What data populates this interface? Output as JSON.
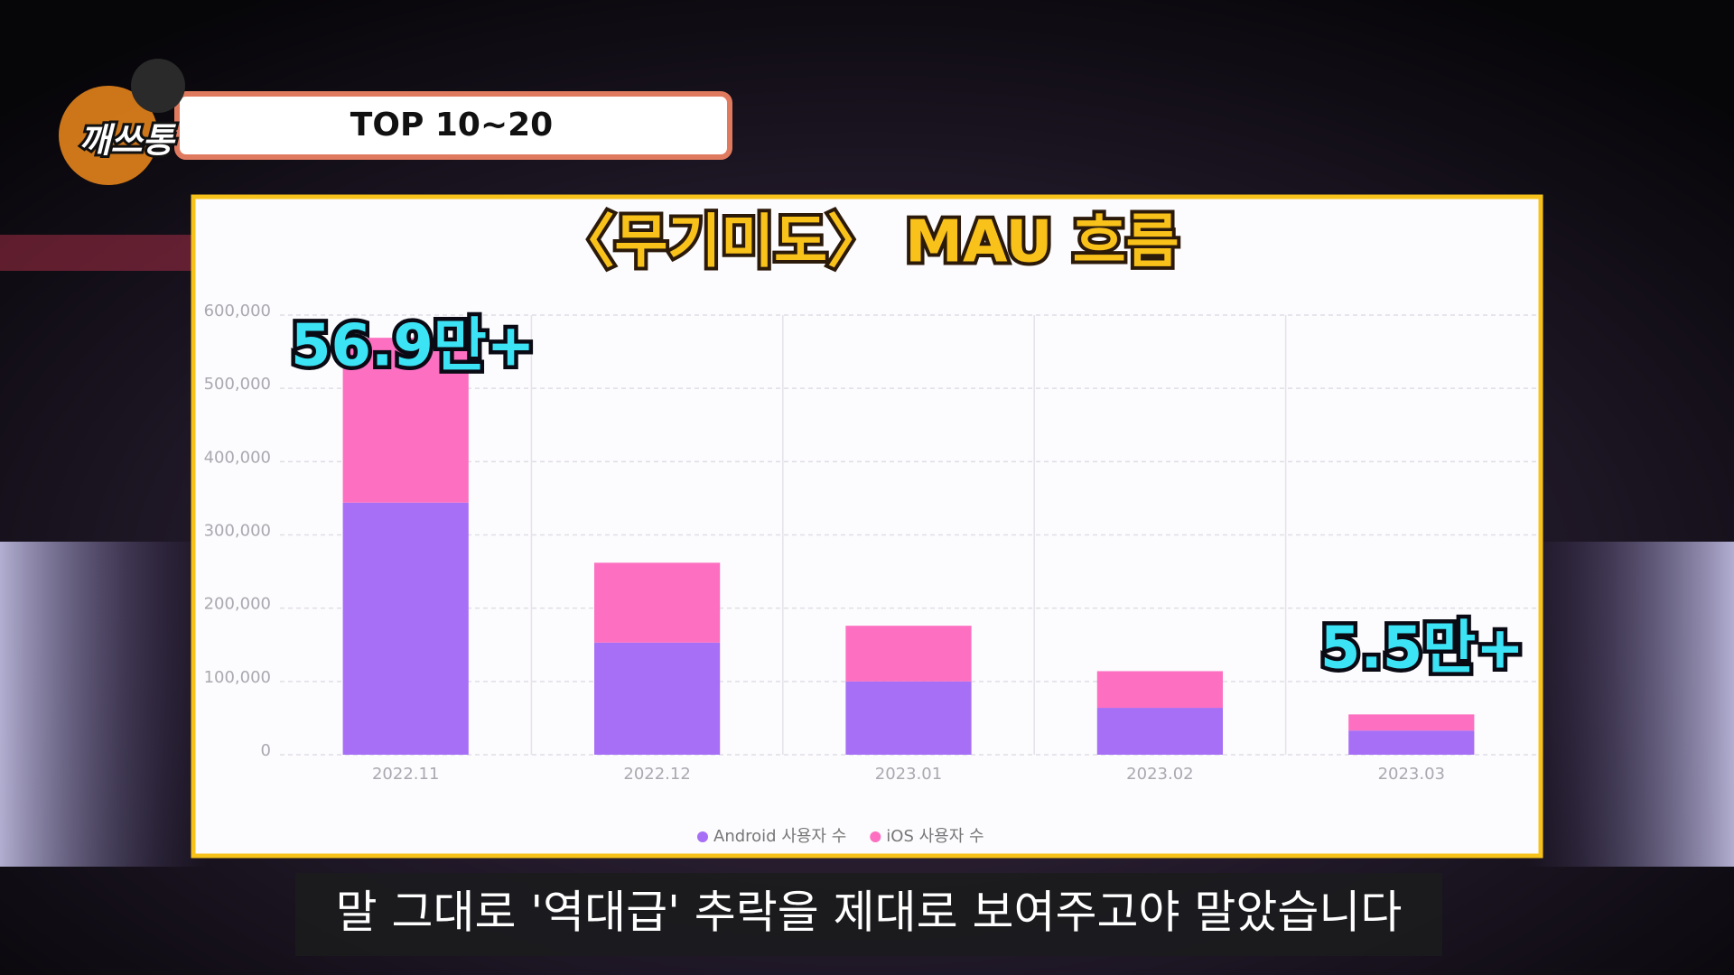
{
  "header": {
    "badge": "TOP 10~20",
    "logo": "깨쓰통"
  },
  "caption": "말 그대로 '역대급' 추락을 제대로 보여주고야 말았습니다",
  "chart_data": {
    "type": "bar",
    "stacked": true,
    "title": "〈무기미도〉 MAU 흐름",
    "categories": [
      "2022.11",
      "2022.12",
      "2023.01",
      "2023.02",
      "2023.03"
    ],
    "series": [
      {
        "name": "Android 사용자 수",
        "color": "#a66ff5",
        "values": [
          344000,
          153000,
          100000,
          64000,
          33000
        ]
      },
      {
        "name": "iOS 사용자 수",
        "color": "#fc6fc1",
        "values": [
          225000,
          109000,
          76000,
          50000,
          22000
        ]
      }
    ],
    "ylim": [
      0,
      600000
    ],
    "yticks": [
      0,
      {
        "value": 100000,
        "label": "100,000"
      },
      {
        "value": 200000,
        "label": "200,000"
      },
      {
        "value": 300000,
        "label": "300,000"
      },
      {
        "value": 400000,
        "label": "400,000"
      },
      {
        "value": 500000,
        "label": "500,000"
      },
      {
        "value": 600000,
        "label": "600,000"
      }
    ],
    "grid": true,
    "legend": "bottom",
    "annotations": [
      "56.9만+",
      "5.5만+"
    ]
  }
}
